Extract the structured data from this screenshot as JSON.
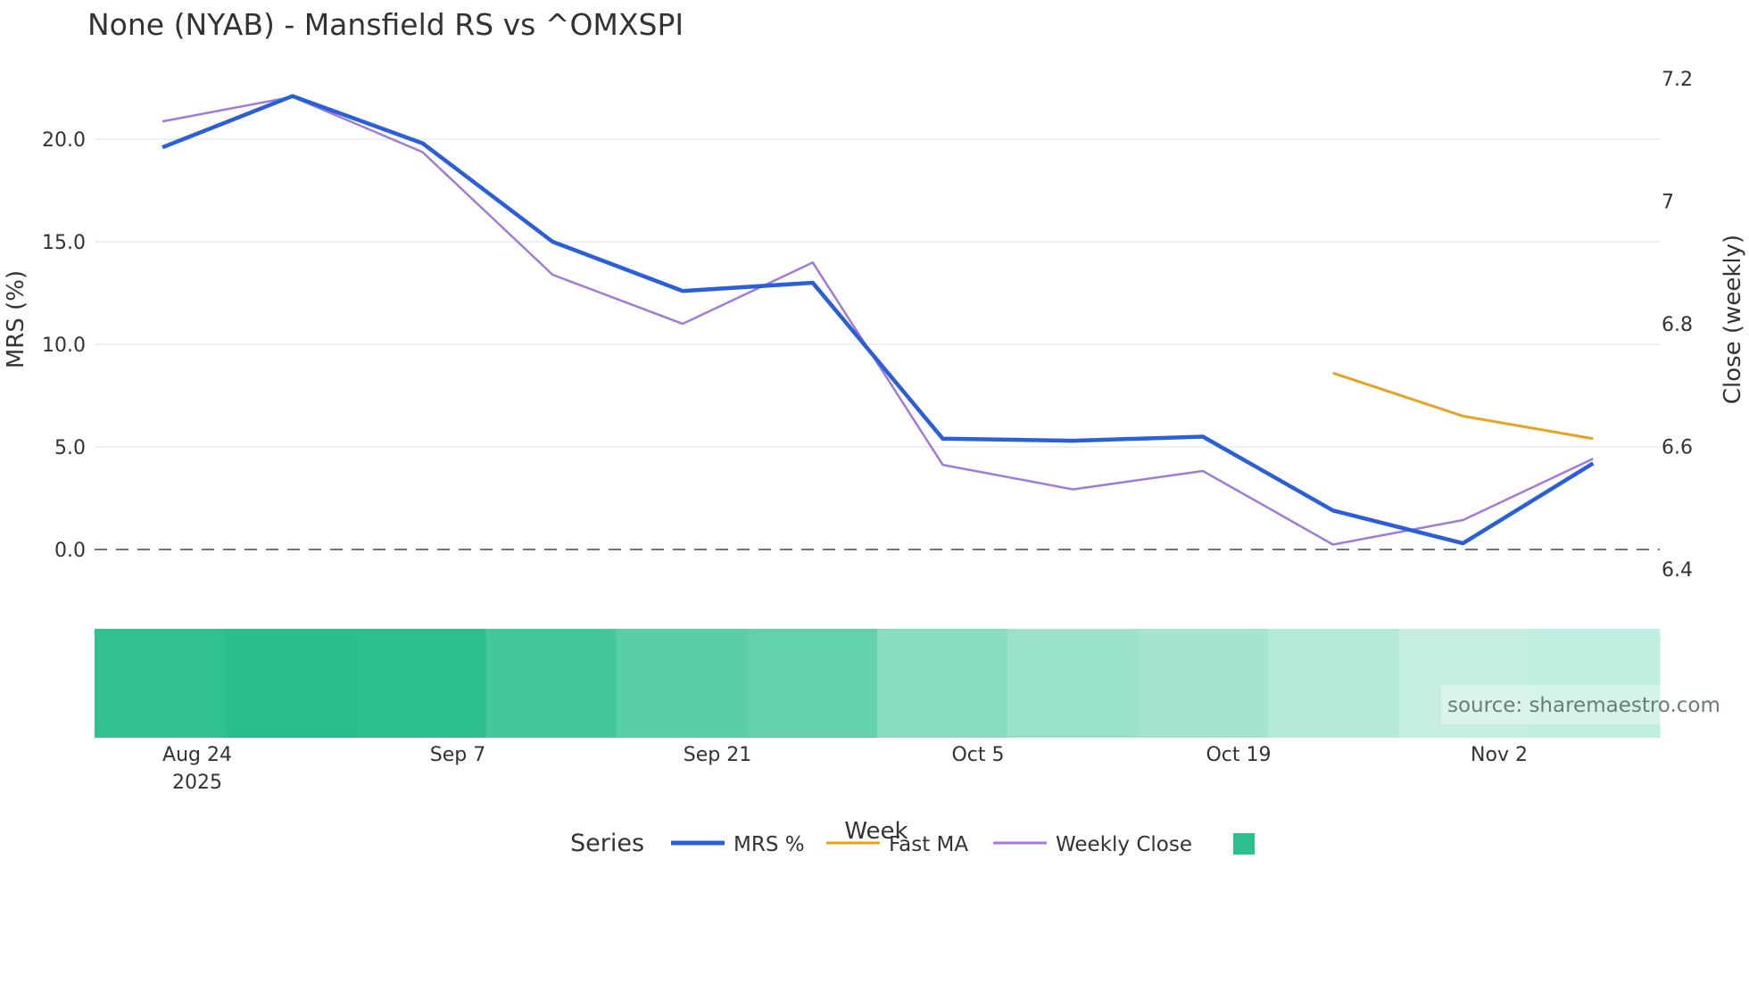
{
  "title": "None (NYAB) - Mansfield RS vs ^OMXSPI",
  "source": "source: sharemaestro.com",
  "legend": {
    "title": "Series",
    "items": [
      {
        "label": "MRS %",
        "color": "#2b5fd9"
      },
      {
        "label": "Fast MA",
        "color": "#e6a31f"
      },
      {
        "label": "Weekly Close",
        "color": "#a07bd8"
      },
      {
        "label": "",
        "color": "#2ebf8c"
      }
    ]
  },
  "axes": {
    "left_title": "MRS (%)",
    "right_title": "Close (weekly)",
    "x_title": "Week",
    "left_ticks": [
      "20.0",
      "15.0",
      "10.0",
      "5.0",
      "0.0"
    ],
    "right_ticks": [
      "7.2",
      "7",
      "6.8",
      "6.6",
      "6.4"
    ],
    "x_ticks": [
      "Aug 24",
      "Sep 7",
      "Sep 21",
      "Oct 5",
      "Oct 19",
      "Nov 2"
    ],
    "x_year": "2025"
  },
  "chart_data": {
    "type": "line",
    "title": "None (NYAB) - Mansfield RS vs ^OMXSPI",
    "xlabel": "Week",
    "ylabel": "MRS (%)",
    "y2label": "Close (weekly)",
    "ylim": [
      -3,
      24
    ],
    "y2lim": [
      6.4,
      7.2
    ],
    "x": [
      "2025-08-17",
      "2025-08-24",
      "2025-08-31",
      "2025-09-07",
      "2025-09-14",
      "2025-09-21",
      "2025-09-28",
      "2025-10-05",
      "2025-10-12",
      "2025-10-19",
      "2025-10-26",
      "2025-11-02"
    ],
    "series": [
      {
        "name": "MRS %",
        "axis": "left",
        "color": "#2b5fd9",
        "values": [
          19.6,
          22.1,
          19.8,
          15.0,
          12.6,
          13.0,
          5.4,
          5.3,
          5.5,
          1.9,
          0.3,
          4.2
        ]
      },
      {
        "name": "Fast MA",
        "axis": "left",
        "color": "#e6a31f",
        "values": [
          null,
          null,
          null,
          null,
          null,
          null,
          null,
          null,
          null,
          8.6,
          6.5,
          5.4
        ]
      },
      {
        "name": "Weekly Close",
        "axis": "right",
        "color": "#a07bd8",
        "values": [
          7.13,
          7.17,
          7.08,
          6.88,
          6.8,
          6.9,
          6.57,
          6.53,
          6.56,
          6.44,
          6.48,
          6.58
        ]
      }
    ],
    "zero_line": {
      "y": 0,
      "style": "dashed"
    },
    "heatmap_strip": {
      "cells": 12,
      "colors": [
        "#31c08f",
        "#29bf8b",
        "#2dc08d",
        "#43c89a",
        "#59cfa7",
        "#63d1ab",
        "#88dcbf",
        "#9ae2c8",
        "#a4e5cd",
        "#b5ead8",
        "#c6efe1",
        "#bfede0"
      ]
    },
    "legend_position": "bottom"
  }
}
